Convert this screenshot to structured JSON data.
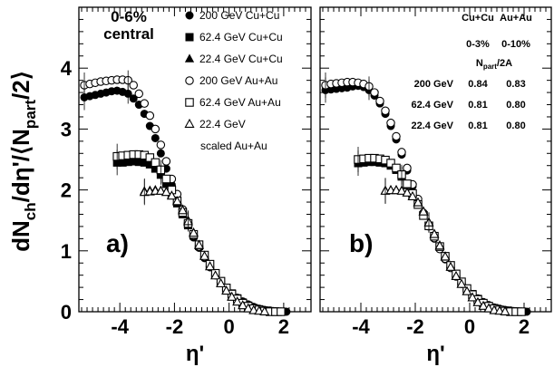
{
  "chart_data": [
    {
      "type": "scatter",
      "panel_label": "a)",
      "centrality_label": [
        "0-6%",
        "central"
      ],
      "xlabel": "η'",
      "ylabel": "dN_ch/dη'/⟨N_part/2⟩",
      "xlim": [
        -5.5,
        3.0
      ],
      "ylim": [
        0,
        5
      ],
      "x_ticks": [
        "-4",
        "-2",
        "0",
        "2"
      ],
      "y_ticks": [
        "0",
        "1",
        "2",
        "3",
        "4"
      ],
      "legend": [
        {
          "label": "200 GeV Cu+Cu",
          "marker": "filled-circle"
        },
        {
          "label": "62.4 GeV Cu+Cu",
          "marker": "filled-square"
        },
        {
          "label": "22.4 GeV Cu+Cu",
          "marker": "filled-triangle"
        },
        {
          "label": "200 GeV Au+Au",
          "marker": "open-circle"
        },
        {
          "label": "62.4 GeV Au+Au",
          "marker": "open-square"
        },
        {
          "label": "22.4 GeV",
          "marker": "open-triangle"
        },
        {
          "label": "scaled Au+Au",
          "marker": "none"
        }
      ],
      "series": [
        {
          "name": "200 GeV Cu+Cu",
          "marker": "filled-circle",
          "x": [
            -5.3,
            -5.1,
            -4.9,
            -4.7,
            -4.5,
            -4.3,
            -4.1,
            -3.9,
            -3.7,
            -3.5,
            -3.3,
            -3.1,
            -2.9,
            -2.7,
            -2.5,
            -2.3,
            -2.1,
            -1.9,
            -1.7,
            -1.5,
            -1.3,
            -1.1,
            -0.9,
            -0.7,
            -0.5,
            -0.3,
            -0.1,
            0.1,
            0.3,
            0.5,
            0.7,
            0.9,
            1.1,
            1.3,
            1.5,
            1.7,
            1.9,
            2.1
          ],
          "y": [
            3.52,
            3.54,
            3.56,
            3.58,
            3.6,
            3.62,
            3.63,
            3.61,
            3.58,
            3.5,
            3.4,
            3.25,
            3.05,
            2.85,
            2.6,
            2.35,
            2.08,
            1.85,
            1.63,
            1.42,
            1.22,
            1.05,
            0.88,
            0.73,
            0.6,
            0.48,
            0.38,
            0.3,
            0.23,
            0.17,
            0.12,
            0.08,
            0.05,
            0.03,
            0.02,
            0.01,
            0.0,
            0.0
          ]
        },
        {
          "name": "62.4 GeV Cu+Cu",
          "marker": "filled-square",
          "x": [
            -4.1,
            -3.9,
            -3.7,
            -3.5,
            -3.3,
            -3.1,
            -2.9,
            -2.7,
            -2.5,
            -2.3,
            -2.1,
            -1.9,
            -1.7,
            -1.5,
            -1.3,
            -1.1,
            -0.9,
            -0.7,
            -0.5,
            -0.3,
            -0.1,
            0.1,
            0.3,
            0.5,
            0.7,
            0.9,
            1.1,
            1.3,
            1.5,
            1.7,
            1.9
          ],
          "y": [
            2.45,
            2.45,
            2.46,
            2.47,
            2.46,
            2.45,
            2.42,
            2.35,
            2.25,
            2.1,
            1.95,
            1.78,
            1.6,
            1.42,
            1.25,
            1.08,
            0.92,
            0.77,
            0.63,
            0.5,
            0.39,
            0.3,
            0.22,
            0.15,
            0.1,
            0.06,
            0.04,
            0.02,
            0.01,
            0.0,
            0.0
          ]
        },
        {
          "name": "22.4 GeV Cu+Cu",
          "marker": "filled-triangle",
          "x": [
            -3.1,
            -2.9,
            -2.7,
            -2.5,
            -2.3,
            -2.1,
            -1.9,
            -1.7,
            -1.5,
            -1.3,
            -1.1,
            -0.9,
            -0.7,
            -0.5,
            -0.3,
            -0.1,
            0.1,
            0.3,
            0.5,
            0.7,
            0.9,
            1.1,
            1.3
          ],
          "y": [
            1.98,
            1.99,
            2.0,
            1.99,
            1.97,
            1.92,
            1.83,
            1.68,
            1.5,
            1.3,
            1.1,
            0.92,
            0.75,
            0.6,
            0.47,
            0.35,
            0.25,
            0.17,
            0.11,
            0.06,
            0.03,
            0.01,
            0.0
          ]
        },
        {
          "name": "200 GeV Au+Au",
          "marker": "open-circle",
          "x": [
            -5.3,
            -5.1,
            -4.9,
            -4.7,
            -4.5,
            -4.3,
            -4.1,
            -3.9,
            -3.7,
            -3.5,
            -3.3,
            -3.1,
            -2.9,
            -2.7,
            -2.5,
            -2.3,
            -2.1,
            -1.9,
            -1.7,
            -1.5,
            -1.3,
            -1.1,
            -0.9,
            -0.7,
            -0.5,
            -0.3,
            -0.1,
            0.1,
            0.3,
            0.5,
            0.7,
            0.9,
            1.1,
            1.3,
            1.5,
            1.7,
            1.9
          ],
          "y": [
            3.72,
            3.74,
            3.76,
            3.78,
            3.79,
            3.8,
            3.81,
            3.81,
            3.8,
            3.72,
            3.58,
            3.42,
            3.22,
            3.0,
            2.74,
            2.47,
            2.18,
            1.93,
            1.68,
            1.46,
            1.25,
            1.07,
            0.9,
            0.74,
            0.6,
            0.48,
            0.37,
            0.28,
            0.2,
            0.14,
            0.09,
            0.06,
            0.03,
            0.02,
            0.01,
            0.0,
            0.0
          ]
        },
        {
          "name": "62.4 GeV Au+Au",
          "marker": "open-square",
          "x": [
            -4.1,
            -3.9,
            -3.7,
            -3.5,
            -3.3,
            -3.1,
            -2.9,
            -2.7,
            -2.5,
            -2.3,
            -2.1,
            -1.9,
            -1.7,
            -1.5,
            -1.3,
            -1.1,
            -0.9,
            -0.7,
            -0.5,
            -0.3,
            -0.1,
            0.1,
            0.3,
            0.5,
            0.7,
            0.9,
            1.1,
            1.3,
            1.5,
            1.7,
            1.9
          ],
          "y": [
            2.55,
            2.56,
            2.57,
            2.58,
            2.58,
            2.57,
            2.53,
            2.45,
            2.33,
            2.18,
            2.0,
            1.82,
            1.63,
            1.45,
            1.27,
            1.1,
            0.93,
            0.78,
            0.63,
            0.5,
            0.39,
            0.29,
            0.21,
            0.14,
            0.09,
            0.05,
            0.03,
            0.01,
            0.0,
            0.0,
            0.0
          ]
        },
        {
          "name": "22.4 GeV scaled Au+Au",
          "marker": "open-triangle",
          "x": [
            -3.1,
            -2.9,
            -2.7,
            -2.5,
            -2.3,
            -2.1,
            -1.9,
            -1.7,
            -1.5,
            -1.3,
            -1.1,
            -0.9,
            -0.7,
            -0.5,
            -0.3,
            -0.1,
            0.1,
            0.3,
            0.5,
            0.7,
            0.9,
            1.1,
            1.3
          ],
          "y": [
            1.96,
            1.97,
            1.98,
            1.98,
            1.96,
            1.9,
            1.81,
            1.66,
            1.48,
            1.29,
            1.09,
            0.91,
            0.74,
            0.59,
            0.46,
            0.34,
            0.24,
            0.16,
            0.1,
            0.05,
            0.02,
            0.01,
            0.0
          ]
        }
      ]
    },
    {
      "type": "scatter",
      "panel_label": "b)",
      "xlabel": "η'",
      "xlim": [
        -5.5,
        3.0
      ],
      "ylim": [
        0,
        5
      ],
      "x_ticks": [
        "-4",
        "-2",
        "0",
        "2"
      ],
      "table": {
        "header": [
          "",
          "Cu+Cu",
          "Au+Au"
        ],
        "centrality": [
          "",
          "0-3%",
          "0-10%"
        ],
        "subheader": "N_part/2A",
        "rows": [
          [
            "200 GeV",
            "0.84",
            "0.83"
          ],
          [
            "62.4 GeV",
            "0.81",
            "0.80"
          ],
          [
            "22.4 GeV",
            "0.81",
            "0.80"
          ]
        ]
      },
      "series": [
        {
          "name": "200 GeV Cu+Cu",
          "marker": "filled-circle",
          "x": [
            -5.3,
            -5.1,
            -4.9,
            -4.7,
            -4.5,
            -4.3,
            -4.1,
            -3.9,
            -3.7,
            -3.5,
            -3.3,
            -3.1,
            -2.9,
            -2.7,
            -2.5,
            -2.3,
            -2.1,
            -1.9,
            -1.7,
            -1.5,
            -1.3,
            -1.1,
            -0.9,
            -0.7,
            -0.5,
            -0.3,
            -0.1,
            0.1,
            0.3,
            0.5,
            0.7,
            0.9,
            1.1,
            1.3,
            1.5,
            1.7,
            1.9,
            2.1
          ],
          "y": [
            3.64,
            3.65,
            3.66,
            3.67,
            3.68,
            3.7,
            3.71,
            3.69,
            3.64,
            3.55,
            3.42,
            3.25,
            3.05,
            2.83,
            2.58,
            2.32,
            2.06,
            1.83,
            1.61,
            1.4,
            1.2,
            1.03,
            0.86,
            0.72,
            0.59,
            0.47,
            0.37,
            0.29,
            0.22,
            0.16,
            0.11,
            0.07,
            0.05,
            0.03,
            0.02,
            0.01,
            0.0,
            0.0
          ]
        },
        {
          "name": "62.4 GeV Cu+Cu",
          "marker": "filled-square",
          "x": [
            -4.1,
            -3.9,
            -3.7,
            -3.5,
            -3.3,
            -3.1,
            -2.9,
            -2.7,
            -2.5,
            -2.3,
            -2.1,
            -1.9,
            -1.7,
            -1.5,
            -1.3,
            -1.1,
            -0.9,
            -0.7,
            -0.5,
            -0.3,
            -0.1,
            0.1,
            0.3,
            0.5,
            0.7,
            0.9,
            1.1,
            1.3,
            1.5,
            1.7,
            1.9
          ],
          "y": [
            2.44,
            2.45,
            2.46,
            2.46,
            2.45,
            2.44,
            2.4,
            2.33,
            2.22,
            2.08,
            1.93,
            1.76,
            1.58,
            1.41,
            1.24,
            1.07,
            0.91,
            0.76,
            0.62,
            0.49,
            0.38,
            0.29,
            0.21,
            0.14,
            0.09,
            0.06,
            0.03,
            0.02,
            0.01,
            0.0,
            0.0
          ]
        },
        {
          "name": "22.4 GeV Cu+Cu",
          "marker": "filled-triangle",
          "x": [
            -3.1,
            -2.9,
            -2.7,
            -2.5,
            -2.3,
            -2.1,
            -1.9,
            -1.7,
            -1.5,
            -1.3,
            -1.1,
            -0.9,
            -0.7,
            -0.5,
            -0.3,
            -0.1,
            0.1,
            0.3,
            0.5,
            0.7,
            0.9,
            1.1,
            1.3
          ],
          "y": [
            1.99,
            2.0,
            2.0,
            1.99,
            1.96,
            1.9,
            1.8,
            1.65,
            1.47,
            1.28,
            1.09,
            0.91,
            0.74,
            0.59,
            0.46,
            0.34,
            0.24,
            0.16,
            0.1,
            0.06,
            0.03,
            0.01,
            0.0
          ]
        },
        {
          "name": "200 GeV Au+Au",
          "marker": "open-circle",
          "x": [
            -5.3,
            -5.1,
            -4.9,
            -4.7,
            -4.5,
            -4.3,
            -4.1,
            -3.9,
            -3.7,
            -3.5,
            -3.3,
            -3.1,
            -2.9,
            -2.7,
            -2.5,
            -2.3,
            -2.1,
            -1.9,
            -1.7,
            -1.5,
            -1.3,
            -1.1,
            -0.9,
            -0.7,
            -0.5,
            -0.3,
            -0.1,
            0.1,
            0.3,
            0.5,
            0.7,
            0.9,
            1.1,
            1.3,
            1.5,
            1.7,
            1.9
          ],
          "y": [
            3.72,
            3.74,
            3.75,
            3.76,
            3.77,
            3.77,
            3.76,
            3.74,
            3.7,
            3.6,
            3.46,
            3.3,
            3.1,
            2.88,
            2.62,
            2.36,
            2.09,
            1.85,
            1.62,
            1.41,
            1.21,
            1.03,
            0.87,
            0.72,
            0.58,
            0.46,
            0.36,
            0.27,
            0.2,
            0.14,
            0.09,
            0.06,
            0.03,
            0.02,
            0.01,
            0.0,
            0.0
          ]
        },
        {
          "name": "62.4 GeV Au+Au",
          "marker": "open-square",
          "x": [
            -4.1,
            -3.9,
            -3.7,
            -3.5,
            -3.3,
            -3.1,
            -2.9,
            -2.7,
            -2.5,
            -2.3,
            -2.1,
            -1.9,
            -1.7,
            -1.5,
            -1.3,
            -1.1,
            -0.9,
            -0.7,
            -0.5,
            -0.3,
            -0.1,
            0.1,
            0.3,
            0.5,
            0.7,
            0.9,
            1.1,
            1.3,
            1.5,
            1.7,
            1.9
          ],
          "y": [
            2.5,
            2.51,
            2.52,
            2.52,
            2.51,
            2.49,
            2.44,
            2.36,
            2.25,
            2.1,
            1.94,
            1.76,
            1.58,
            1.41,
            1.24,
            1.07,
            0.91,
            0.76,
            0.62,
            0.49,
            0.38,
            0.28,
            0.2,
            0.14,
            0.09,
            0.05,
            0.03,
            0.01,
            0.0,
            0.0,
            0.0
          ]
        },
        {
          "name": "22.4 GeV scaled Au+Au",
          "marker": "open-triangle",
          "x": [
            -3.1,
            -2.9,
            -2.7,
            -2.5,
            -2.3,
            -2.1,
            -1.9,
            -1.7,
            -1.5,
            -1.3,
            -1.1,
            -0.9,
            -0.7,
            -0.5,
            -0.3,
            -0.1,
            0.1,
            0.3,
            0.5,
            0.7,
            0.9,
            1.1,
            1.3
          ],
          "y": [
            1.98,
            1.99,
            1.99,
            1.98,
            1.95,
            1.89,
            1.79,
            1.64,
            1.46,
            1.27,
            1.08,
            0.9,
            0.73,
            0.58,
            0.45,
            0.33,
            0.23,
            0.15,
            0.09,
            0.05,
            0.02,
            0.01,
            0.0
          ]
        }
      ]
    }
  ]
}
